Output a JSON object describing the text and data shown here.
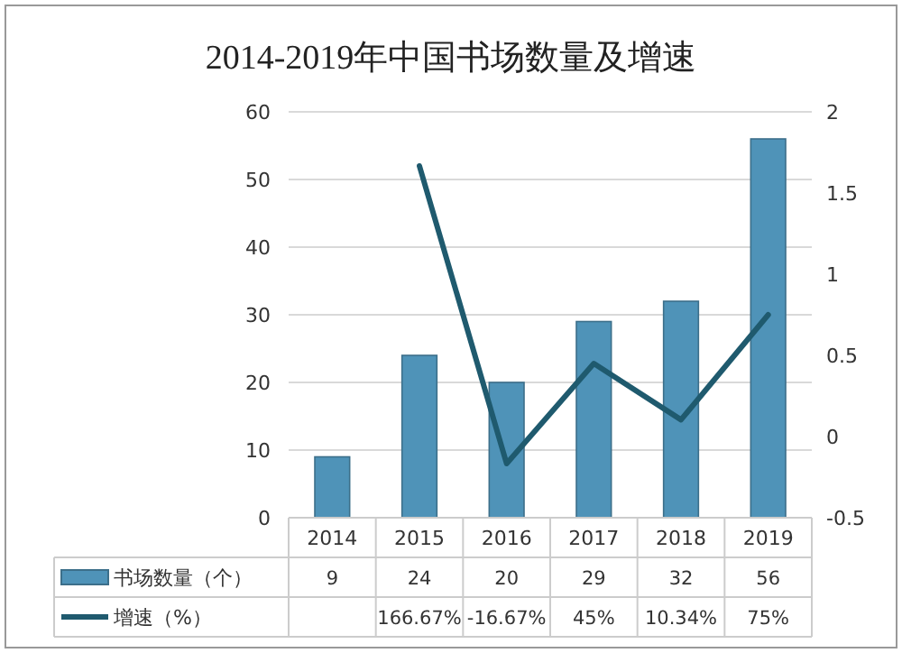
{
  "chart_data": {
    "type": "bar",
    "title": "2014-2019年中国书场数量及增速",
    "categories": [
      "2014",
      "2015",
      "2016",
      "2017",
      "2018",
      "2019"
    ],
    "series": [
      {
        "name": "书场数量（个）",
        "color": "#4f93b8",
        "values": [
          9,
          24,
          20,
          29,
          32,
          56
        ],
        "value_labels": [
          "9",
          "24",
          "20",
          "29",
          "32",
          "56"
        ]
      },
      {
        "name": "增速（%）",
        "type": "line",
        "axis": "y2",
        "color": "#1f5a6e",
        "values": [
          null,
          1.6667,
          -0.1667,
          0.45,
          0.1034,
          0.75
        ],
        "value_labels": [
          null,
          "166.67%",
          "-16.67%",
          "45%",
          "10.34%",
          "75%"
        ]
      }
    ],
    "ylim": [
      0,
      60
    ],
    "yticks": [
      0,
      10,
      20,
      30,
      40,
      50,
      60
    ],
    "y2lim": [
      -0.5,
      2
    ],
    "y2ticks": [
      -0.5,
      0,
      0.5,
      1,
      1.5,
      2
    ],
    "grid": "y",
    "legend": "bottom"
  }
}
